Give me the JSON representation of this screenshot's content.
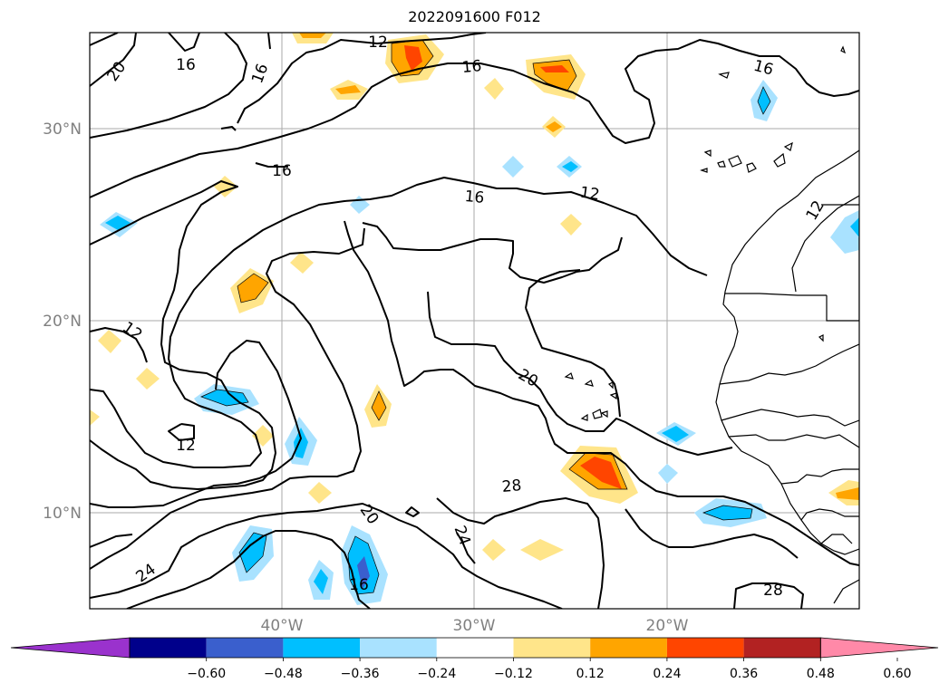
{
  "title": "2022091600 F012",
  "map": {
    "lat_labels": [
      "30°N",
      "20°N",
      "10°N"
    ],
    "lon_labels": [
      "40°W",
      "30°W",
      "20°W"
    ],
    "contour_labels": [
      "20",
      "16",
      "16",
      "12",
      "16",
      "16",
      "16",
      "12",
      "16",
      "12",
      "12",
      "20",
      "12",
      "20",
      "24",
      "24",
      "28",
      "28",
      "16"
    ]
  },
  "colorbar": {
    "colors": [
      "#9a32cd",
      "#00008b",
      "#3a5fcd",
      "#00bfff",
      "#a9e2ff",
      "#ffffff",
      "#ffe58a",
      "#ffa500",
      "#ff4500",
      "#b22222",
      "#ff89a8"
    ],
    "ticks": [
      "−0.60",
      "−0.48",
      "−0.36",
      "−0.24",
      "−0.12",
      "0.12",
      "0.24",
      "0.36",
      "0.48",
      "0.60"
    ]
  },
  "legend_colors": {
    "contour": "#000000",
    "grid": "#aaaaaa"
  }
}
